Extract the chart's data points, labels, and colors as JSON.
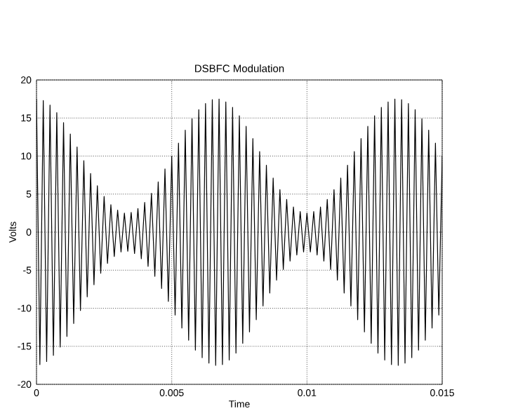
{
  "chart_data": {
    "type": "line",
    "title": "DSBFC Modulation",
    "xlabel": "Time",
    "ylabel": "Volts",
    "x": [
      0,
      0.000125,
      0.00025,
      0.000375,
      0.0005,
      0.000625,
      0.00075,
      0.000875,
      0.001,
      0.001125,
      0.00125,
      0.001375,
      0.0015,
      0.001625,
      0.00175,
      0.001875,
      0.002,
      0.002125,
      0.00225,
      0.002375,
      0.0025,
      0.002625,
      0.00275,
      0.002875,
      0.003,
      0.003125,
      0.00325,
      0.003375,
      0.0035,
      0.003625,
      0.00375,
      0.003875,
      0.004,
      0.004125,
      0.00425,
      0.004375,
      0.0045,
      0.004625,
      0.00475,
      0.004875,
      0.005,
      0.005125,
      0.00525,
      0.005375,
      0.0055,
      0.005625,
      0.00575,
      0.005875,
      0.006,
      0.006125,
      0.00625,
      0.006375,
      0.0065,
      0.006625,
      0.00675,
      0.006875,
      0.007,
      0.007125,
      0.00725,
      0.007375,
      0.0075,
      0.007625,
      0.00775,
      0.007875,
      0.008,
      0.008125,
      0.00825,
      0.008375,
      0.0085,
      0.008625,
      0.00875,
      0.008875,
      0.009,
      0.009125,
      0.00925,
      0.009375,
      0.0095,
      0.009625,
      0.00975,
      0.009875,
      0.01,
      0.010125,
      0.01025,
      0.010375,
      0.0105,
      0.010625,
      0.01075,
      0.010875,
      0.011,
      0.011125,
      0.01125,
      0.011375,
      0.0115,
      0.011625,
      0.01175,
      0.011875,
      0.012,
      0.012125,
      0.01225,
      0.012375,
      0.0125,
      0.012625,
      0.01275,
      0.012875,
      0.013,
      0.013125,
      0.01325,
      0.013375,
      0.0135,
      0.013625,
      0.01375,
      0.013875,
      0.014,
      0.014125,
      0.01425,
      0.014375,
      0.0145,
      0.014625,
      0.01475,
      0.014875,
      0.015
    ],
    "series": [
      {
        "color": "#000000",
        "values": [
          17.5,
          -17.4,
          17.3,
          -17.0,
          16.7,
          -16.2,
          15.7,
          -15.1,
          14.4,
          -13.7,
          12.9,
          -12.0,
          11.2,
          -10.3,
          9.4,
          -8.5,
          7.7,
          -6.9,
          6.1,
          -5.4,
          4.7,
          -4.1,
          3.6,
          -3.2,
          2.9,
          -2.6,
          2.5,
          -2.5,
          2.6,
          -2.8,
          3.1,
          -3.5,
          3.9,
          -4.5,
          5.1,
          -5.8,
          6.6,
          -7.4,
          8.3,
          -9.1,
          10.0,
          -10.9,
          11.7,
          -12.6,
          13.4,
          -14.2,
          14.9,
          -15.5,
          16.1,
          -16.5,
          16.9,
          -17.2,
          17.4,
          -17.5,
          17.5,
          -17.4,
          17.1,
          -16.8,
          16.4,
          -15.9,
          15.3,
          -14.6,
          13.9,
          -13.1,
          12.3,
          -11.5,
          10.6,
          -9.7,
          8.8,
          -8.0,
          7.1,
          -6.3,
          5.6,
          -4.9,
          4.3,
          -3.8,
          3.3,
          -3.0,
          2.7,
          -2.6,
          2.5,
          -2.6,
          2.7,
          -3.0,
          3.3,
          -3.8,
          4.3,
          -4.9,
          5.6,
          -6.3,
          7.1,
          -8.0,
          8.8,
          -9.7,
          10.6,
          -11.5,
          12.3,
          -13.1,
          13.9,
          -14.6,
          15.3,
          -15.9,
          16.4,
          -16.8,
          17.1,
          -17.4,
          17.5,
          -17.5,
          17.4,
          -17.2,
          16.9,
          -16.5,
          16.1,
          -15.5,
          14.9,
          -14.2,
          13.4,
          -12.6,
          11.7,
          -10.9,
          10.0
        ]
      }
    ],
    "xlim": [
      0,
      0.015
    ],
    "xticks": [
      0,
      0.005,
      0.01,
      0.015
    ],
    "ylim": [
      -20,
      20
    ],
    "yticks": [
      -20,
      -15,
      -10,
      -5,
      0,
      5,
      10,
      15,
      20
    ],
    "grid": true,
    "marker": "none",
    "line_style": "solid"
  }
}
